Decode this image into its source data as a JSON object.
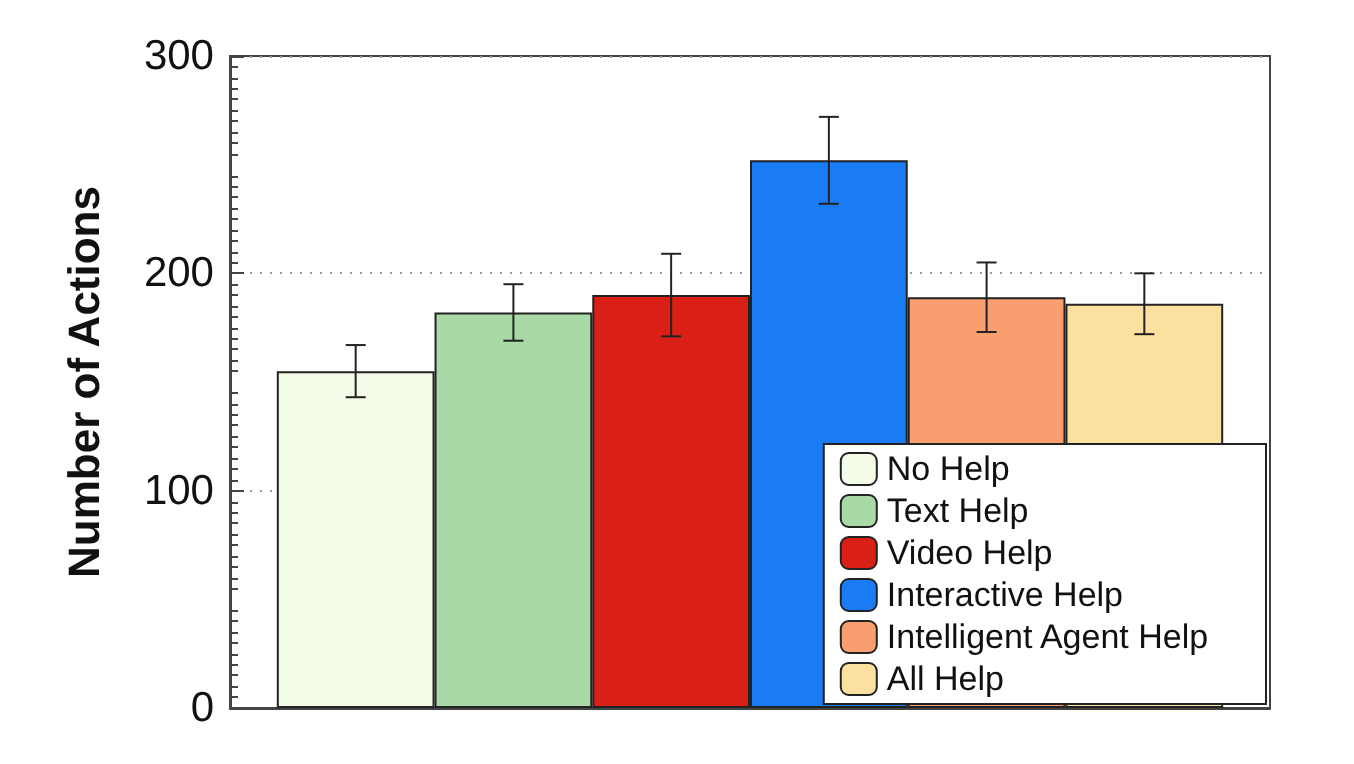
{
  "chart_data": {
    "type": "bar",
    "ylabel": "Number of Actions",
    "categories": [
      null
    ],
    "series": [
      {
        "name": "No Help",
        "color": "#f3fce9",
        "values": [
          155
        ],
        "errors": [
          12
        ]
      },
      {
        "name": "Text Help",
        "color": "#a8d9a6",
        "values": [
          182
        ],
        "errors": [
          13
        ]
      },
      {
        "name": "Video Help",
        "color": "#d91f16",
        "values": [
          190
        ],
        "errors": [
          19
        ]
      },
      {
        "name": "Interactive Help",
        "color": "#1a7cf5",
        "values": [
          252
        ],
        "errors": [
          20
        ]
      },
      {
        "name": "Intelligent Agent Help",
        "color": "#f99e6f",
        "values": [
          189
        ],
        "errors": [
          16
        ]
      },
      {
        "name": "All Help",
        "color": "#fce0a0",
        "values": [
          186
        ],
        "errors": [
          14
        ]
      }
    ],
    "ylim": [
      0,
      300
    ],
    "yticks": [
      0,
      100,
      200,
      300
    ],
    "grid": "y",
    "legend": "bottom right"
  }
}
